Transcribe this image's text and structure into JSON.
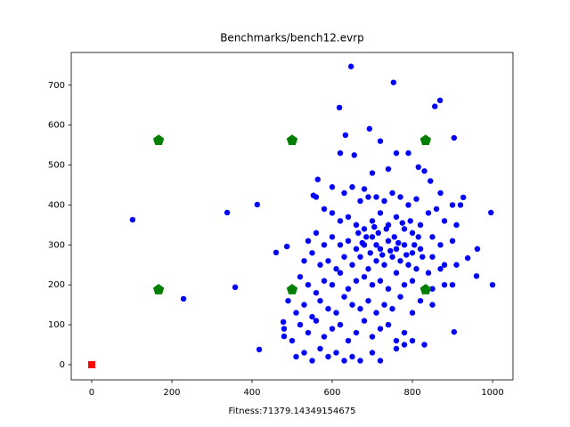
{
  "chart_data": {
    "type": "scatter",
    "title": "Benchmarks/bench12.evrp",
    "x_label": "Fitness:71379.14349154675",
    "xlim": [
      -51,
      1051
    ],
    "ylim": [
      -38,
      782
    ],
    "xticks": [
      0,
      200,
      400,
      600,
      800,
      1000
    ],
    "yticks": [
      0,
      100,
      200,
      300,
      400,
      500,
      600,
      700
    ],
    "grid": false,
    "series": [
      {
        "color": "#0000ff",
        "marker": "circle",
        "x": [
          102,
          338,
          413,
          358,
          229,
          418,
          647,
          753,
          618,
          869,
          856,
          693,
          633,
          904,
          996,
          1000,
          904,
          960,
          962,
          938,
          927,
          460,
          487,
          478,
          480,
          564,
          553,
          620,
          655,
          670,
          690,
          700,
          720,
          740,
          760,
          790,
          815,
          830,
          845,
          870,
          900,
          920,
          600,
          630,
          650,
          680,
          710,
          730,
          750,
          770,
          790,
          810,
          840,
          860,
          880,
          910,
          560,
          580,
          600,
          620,
          640,
          660,
          680,
          700,
          720,
          740,
          760,
          780,
          800,
          820,
          850,
          870,
          900,
          540,
          560,
          580,
          600,
          620,
          640,
          660,
          680,
          700,
          720,
          740,
          760,
          780,
          800,
          820,
          850,
          880,
          910,
          530,
          550,
          570,
          590,
          610,
          630,
          650,
          670,
          690,
          710,
          730,
          750,
          770,
          790,
          810,
          840,
          870,
          900,
          500,
          520,
          540,
          560,
          580,
          600,
          620,
          640,
          660,
          680,
          700,
          720,
          740,
          760,
          780,
          800,
          850,
          880,
          490,
          510,
          530,
          550,
          570,
          590,
          610,
          630,
          650,
          670,
          690,
          710,
          730,
          750,
          770,
          800,
          820,
          850,
          480,
          500,
          520,
          540,
          560,
          580,
          600,
          620,
          640,
          660,
          680,
          700,
          720,
          740,
          760,
          780,
          800,
          830,
          510,
          530,
          550,
          570,
          590,
          610,
          630,
          650,
          670,
          700,
          720,
          760,
          780,
          710,
          715,
          725,
          735,
          745,
          755,
          765,
          775,
          785,
          705,
          695,
          685,
          675,
          665,
          815,
          825,
          795,
          805
        ],
        "y": [
          363,
          381,
          401,
          194,
          165,
          38,
          747,
          707,
          644,
          662,
          647,
          591,
          575,
          568,
          381,
          200,
          82,
          222,
          290,
          267,
          419,
          281,
          296,
          107,
          71,
          464,
          424,
          530,
          525,
          410,
          420,
          480,
          560,
          490,
          530,
          530,
          495,
          485,
          460,
          430,
          400,
          400,
          445,
          430,
          445,
          440,
          420,
          410,
          430,
          420,
          400,
          415,
          380,
          390,
          360,
          350,
          420,
          390,
          380,
          360,
          370,
          350,
          340,
          360,
          380,
          350,
          370,
          340,
          330,
          350,
          320,
          300,
          310,
          310,
          330,
          300,
          320,
          300,
          310,
          290,
          300,
          320,
          290,
          310,
          290,
          300,
          280,
          290,
          270,
          250,
          250,
          260,
          280,
          250,
          260,
          240,
          270,
          250,
          270,
          240,
          260,
          250,
          270,
          260,
          250,
          240,
          230,
          240,
          200,
          190,
          220,
          200,
          180,
          210,
          200,
          230,
          190,
          210,
          220,
          200,
          210,
          190,
          230,
          200,
          210,
          190,
          200,
          160,
          130,
          150,
          120,
          160,
          140,
          130,
          170,
          150,
          140,
          160,
          130,
          150,
          140,
          170,
          130,
          160,
          150,
          90,
          60,
          100,
          80,
          110,
          70,
          90,
          100,
          60,
          80,
          110,
          70,
          90,
          100,
          60,
          80,
          60,
          50,
          20,
          30,
          10,
          40,
          20,
          30,
          10,
          20,
          10,
          30,
          10,
          40,
          50,
          300,
          330,
          275,
          340,
          285,
          320,
          305,
          355,
          275,
          345,
          280,
          320,
          305,
          330,
          320,
          270,
          360,
          300
        ]
      },
      {
        "color": "#008000",
        "marker": "pentagon",
        "x": [
          167,
          500,
          833,
          167,
          500,
          833
        ],
        "y": [
          562,
          562,
          562,
          188,
          188,
          188
        ]
      },
      {
        "color": "#ff0000",
        "marker": "square",
        "x": [
          0
        ],
        "y": [
          0
        ]
      }
    ]
  }
}
